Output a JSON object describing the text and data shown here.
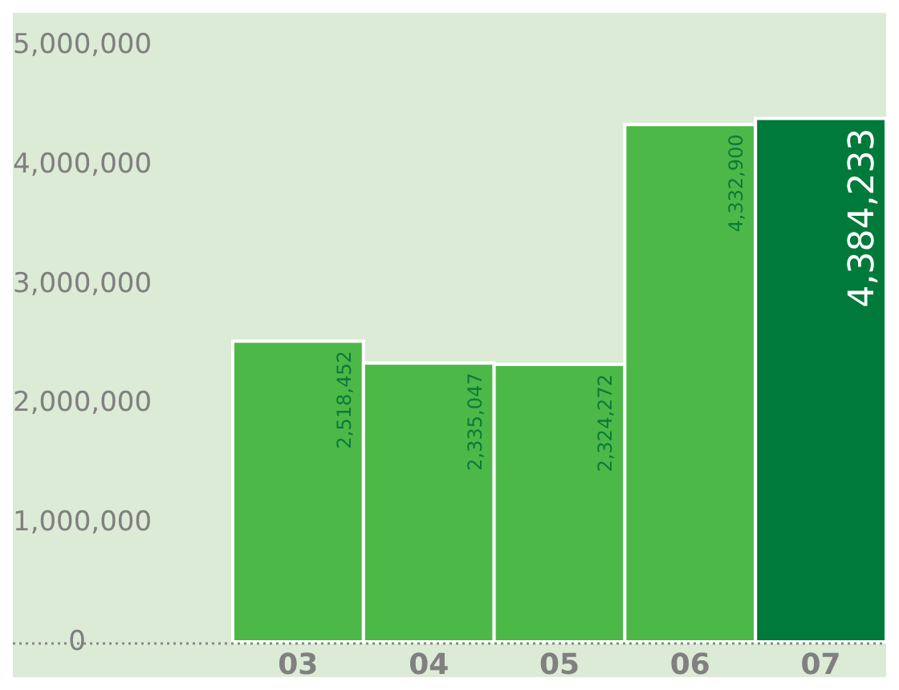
{
  "chart_data": {
    "type": "bar",
    "categories": [
      "03",
      "04",
      "05",
      "06",
      "07"
    ],
    "values": [
      2518452,
      2335047,
      2324272,
      4332900,
      4384233
    ],
    "colors": [
      "#4cb848",
      "#4cb848",
      "#4cb848",
      "#4cb848",
      "#007a3a"
    ],
    "ylim": [
      0,
      5000000
    ],
    "yticks": [
      {
        "value": 0,
        "label": "0"
      },
      {
        "value": 1000000,
        "label": "1,000,000"
      },
      {
        "value": 2000000,
        "label": "2,000,000"
      },
      {
        "value": 3000000,
        "label": "3,000,000"
      },
      {
        "value": 4000000,
        "label": "4,000,000"
      },
      {
        "value": 5000000,
        "label": "5,000,000"
      }
    ],
    "value_labels": [
      "2,518,452",
      "2,335,047",
      "2,324,272",
      "4,332,900",
      "4,384,233"
    ],
    "grid": false
  }
}
